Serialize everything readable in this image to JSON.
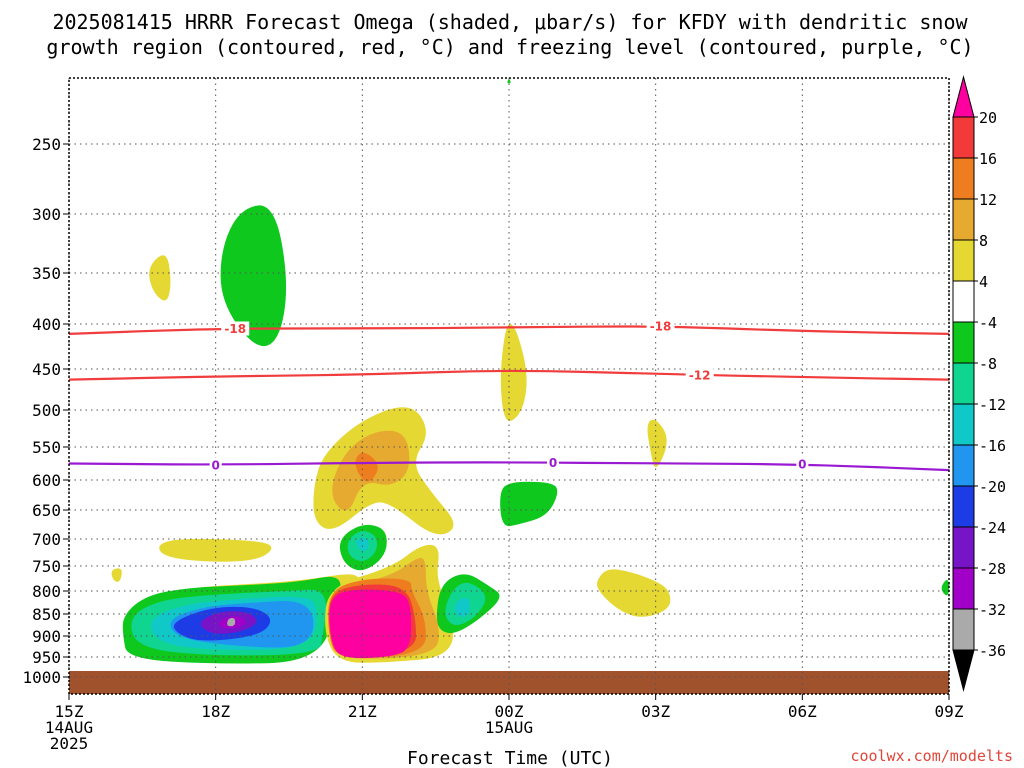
{
  "chart_data": {
    "type": "heatmap",
    "title_lines": [
      "2025081415 HRRR Forecast Omega (shaded, μbar/s) for KFDY with dendritic snow",
      "growth region (contoured, red, °C) and freezing level (contoured, purple, °C)"
    ],
    "xlabel": "Forecast Time (UTC)",
    "ylabel": "",
    "credit": "coolwx.com/modelts",
    "x_ticks": [
      {
        "hour": 0,
        "lines": [
          "15Z",
          "14AUG",
          "2025"
        ]
      },
      {
        "hour": 3,
        "lines": [
          "18Z"
        ]
      },
      {
        "hour": 6,
        "lines": [
          "21Z"
        ]
      },
      {
        "hour": 9,
        "lines": [
          "00Z",
          "15AUG"
        ]
      },
      {
        "hour": 12,
        "lines": [
          "03Z"
        ]
      },
      {
        "hour": 15,
        "lines": [
          "06Z"
        ]
      },
      {
        "hour": 18,
        "lines": [
          "09Z"
        ]
      }
    ],
    "x_range_hours": [
      0,
      18
    ],
    "y_axis": "pressure_mb",
    "y_range": [
      1050,
      200
    ],
    "y_ticks": [
      250,
      300,
      350,
      400,
      450,
      500,
      550,
      600,
      650,
      700,
      750,
      800,
      850,
      900,
      950,
      1000
    ],
    "surface_pressure": 985,
    "grid": true,
    "colorbar": {
      "levels": [
        20,
        16,
        12,
        8,
        4,
        -4,
        -8,
        -12,
        -16,
        -20,
        -24,
        -28,
        -32,
        -36
      ],
      "colors": [
        "#ff00a0",
        "#f23a3a",
        "#ee7d20",
        "#e6aa30",
        "#e6d832",
        "#ffffff",
        "#0fc81e",
        "#10d590",
        "#10c8c8",
        "#2096f0",
        "#1e3ce6",
        "#7814c8",
        "#a000c8",
        "#aaaaaa",
        "#000000"
      ],
      "shading_note_colors": {
        "ground": "#a0522d"
      }
    },
    "isotherms": [
      {
        "value": -18,
        "label": "-18",
        "color": "#f03c3c",
        "points": [
          [
            0,
            411
          ],
          [
            3,
            405
          ],
          [
            6,
            405
          ],
          [
            9,
            404
          ],
          [
            12,
            402
          ],
          [
            15,
            408
          ],
          [
            18,
            411
          ]
        ],
        "label_hours": [
          3.4,
          12.1
        ]
      },
      {
        "value": -12,
        "label": "-12",
        "color": "#f03c3c",
        "points": [
          [
            0,
            463
          ],
          [
            3,
            459
          ],
          [
            6,
            457
          ],
          [
            9,
            451
          ],
          [
            12,
            456
          ],
          [
            15,
            460
          ],
          [
            18,
            463
          ]
        ],
        "label_hours": [
          12.9
        ]
      },
      {
        "value": 0,
        "label": "0",
        "color": "#9a1ad2",
        "points": [
          [
            0,
            575
          ],
          [
            3,
            577
          ],
          [
            6,
            574
          ],
          [
            9,
            573
          ],
          [
            12,
            575
          ],
          [
            15,
            576
          ],
          [
            18,
            585
          ]
        ],
        "label_hours": [
          3.0,
          9.9,
          15.0
        ]
      }
    ],
    "omega_regions": [
      {
        "level": "-4",
        "color": "#0fc81e",
        "points": [
          [
            3.1,
            330
          ],
          [
            3.5,
            296
          ],
          [
            4.2,
            292
          ],
          [
            4.5,
            360
          ],
          [
            4.3,
            420
          ],
          [
            3.8,
            428
          ],
          [
            3.1,
            378
          ]
        ]
      },
      {
        "level": "4",
        "color": "#e6d832",
        "points": [
          [
            1.6,
            345
          ],
          [
            2.0,
            330
          ],
          [
            2.1,
            360
          ],
          [
            2.0,
            381
          ],
          [
            1.7,
            368
          ]
        ]
      },
      {
        "level": "4",
        "color": "#e6d832",
        "points": [
          [
            8.8,
            453
          ],
          [
            9.0,
            385
          ],
          [
            9.4,
            450
          ],
          [
            9.3,
            502
          ],
          [
            8.9,
            523
          ]
        ]
      },
      {
        "level": "4",
        "color": "#e6d832",
        "points": [
          [
            5.0,
            610
          ],
          [
            5.2,
            560
          ],
          [
            6.0,
            512
          ],
          [
            7.0,
            490
          ],
          [
            7.4,
            530
          ],
          [
            7.0,
            574
          ],
          [
            7.4,
            620
          ],
          [
            8.0,
            678
          ],
          [
            7.5,
            700
          ],
          [
            6.6,
            640
          ],
          [
            6.2,
            635
          ],
          [
            5.4,
            690
          ],
          [
            5.0,
            670
          ]
        ]
      },
      {
        "level": "8",
        "color": "#e6aa30",
        "points": [
          [
            5.3,
            625
          ],
          [
            5.6,
            560
          ],
          [
            6.2,
            528
          ],
          [
            6.9,
            528
          ],
          [
            7.0,
            585
          ],
          [
            6.6,
            612
          ],
          [
            6.0,
            600
          ],
          [
            5.7,
            663
          ]
        ]
      },
      {
        "level": "12",
        "color": "#ee7d20",
        "points": [
          [
            6.0,
            553
          ],
          [
            6.4,
            578
          ],
          [
            6.1,
            612
          ],
          [
            5.8,
            575
          ]
        ]
      },
      {
        "level": "4",
        "color": "#e6d832",
        "points": [
          [
            1.8,
            700
          ],
          [
            3.4,
            700
          ],
          [
            4.3,
            710
          ],
          [
            3.8,
            745
          ],
          [
            1.9,
            738
          ]
        ]
      },
      {
        "level": "4",
        "color": "#e6d832",
        "points": [
          [
            0.85,
            757
          ],
          [
            1.1,
            753
          ],
          [
            1.05,
            783
          ],
          [
            0.9,
            780
          ]
        ]
      },
      {
        "level": "4",
        "color": "#e6d832",
        "points": [
          [
            1.6,
            820
          ],
          [
            2.5,
            793
          ],
          [
            3.5,
            787
          ],
          [
            4.7,
            780
          ],
          [
            6.0,
            760
          ],
          [
            5.8,
            800
          ],
          [
            5.0,
            800
          ],
          [
            4.5,
            880
          ],
          [
            3.0,
            900
          ]
        ]
      },
      {
        "level": "-4",
        "color": "#0fc81e",
        "points": [
          [
            1.1,
            852
          ],
          [
            1.6,
            808
          ],
          [
            2.5,
            793
          ],
          [
            3.5,
            789
          ],
          [
            4.7,
            782
          ],
          [
            5.6,
            765
          ],
          [
            5.5,
            830
          ],
          [
            5.1,
            963
          ],
          [
            3.0,
            968
          ],
          [
            1.2,
            955
          ],
          [
            1.1,
            900
          ]
        ]
      },
      {
        "level": "-8",
        "color": "#10d590",
        "points": [
          [
            1.2,
            860
          ],
          [
            1.8,
            820
          ],
          [
            3.0,
            807
          ],
          [
            4.5,
            800
          ],
          [
            5.3,
            795
          ],
          [
            5.2,
            900
          ],
          [
            5.1,
            943
          ],
          [
            3.0,
            948
          ],
          [
            1.4,
            930
          ]
        ]
      },
      {
        "level": "-12",
        "color": "#10c8c8",
        "points": [
          [
            1.6,
            860
          ],
          [
            2.4,
            828
          ],
          [
            3.4,
            818
          ],
          [
            4.8,
            810
          ],
          [
            5.1,
            830
          ],
          [
            5.0,
            930
          ],
          [
            3.0,
            935
          ],
          [
            1.8,
            918
          ]
        ]
      },
      {
        "level": "-16",
        "color": "#2096f0",
        "points": [
          [
            2.0,
            863
          ],
          [
            2.7,
            835
          ],
          [
            3.6,
            826
          ],
          [
            5.0,
            818
          ],
          [
            5.0,
            930
          ],
          [
            3.4,
            925
          ],
          [
            2.2,
            905
          ]
        ]
      },
      {
        "level": "-20",
        "color": "#1e3ce6",
        "points": [
          [
            2.1,
            868
          ],
          [
            2.9,
            835
          ],
          [
            3.8,
            834
          ],
          [
            4.2,
            862
          ],
          [
            3.9,
            900
          ],
          [
            2.7,
            915
          ],
          [
            2.2,
            895
          ]
        ]
      },
      {
        "level": "-24",
        "color": "#7814c8",
        "points": [
          [
            2.6,
            869
          ],
          [
            3.1,
            843
          ],
          [
            3.7,
            845
          ],
          [
            3.9,
            870
          ],
          [
            3.5,
            892
          ],
          [
            2.9,
            897
          ]
        ]
      },
      {
        "level": "-28",
        "color": "#a000c8",
        "points": [
          [
            3.0,
            871
          ],
          [
            3.3,
            853
          ],
          [
            3.6,
            858
          ],
          [
            3.6,
            878
          ],
          [
            3.2,
            886
          ]
        ]
      },
      {
        "level": "-32",
        "color": "#aaaaaa",
        "points": [
          [
            3.25,
            860
          ],
          [
            3.4,
            858
          ],
          [
            3.4,
            878
          ],
          [
            3.22,
            878
          ]
        ]
      },
      {
        "level": "4",
        "color": "#e6d832",
        "points": [
          [
            5.3,
            790
          ],
          [
            6.6,
            753
          ],
          [
            7.2,
            710
          ],
          [
            7.6,
            712
          ],
          [
            7.5,
            780
          ],
          [
            7.9,
            862
          ],
          [
            7.8,
            950
          ],
          [
            6.5,
            964
          ],
          [
            5.5,
            965
          ],
          [
            5.2,
            890
          ]
        ]
      },
      {
        "level": "8",
        "color": "#e6aa30",
        "points": [
          [
            5.3,
            800
          ],
          [
            6.6,
            770
          ],
          [
            7.1,
            735
          ],
          [
            7.3,
            735
          ],
          [
            7.3,
            800
          ],
          [
            7.6,
            880
          ],
          [
            7.5,
            948
          ],
          [
            5.5,
            958
          ],
          [
            5.3,
            900
          ]
        ]
      },
      {
        "level": "12",
        "color": "#ee7d20",
        "points": [
          [
            5.3,
            800
          ],
          [
            6.0,
            775
          ],
          [
            7.0,
            775
          ],
          [
            7.0,
            800
          ],
          [
            7.3,
            860
          ],
          [
            7.3,
            945
          ],
          [
            5.5,
            955
          ],
          [
            5.3,
            900
          ]
        ]
      },
      {
        "level": "16",
        "color": "#f23a3a",
        "points": [
          [
            5.3,
            805
          ],
          [
            6.0,
            785
          ],
          [
            6.9,
            790
          ],
          [
            7.1,
            860
          ],
          [
            7.1,
            940
          ],
          [
            5.5,
            950
          ],
          [
            5.35,
            900
          ]
        ]
      },
      {
        "level": "20",
        "color": "#ff00a0",
        "points": [
          [
            5.3,
            815
          ],
          [
            5.8,
            795
          ],
          [
            6.8,
            800
          ],
          [
            7.0,
            830
          ],
          [
            7.0,
            930
          ],
          [
            6.6,
            950
          ],
          [
            5.6,
            955
          ],
          [
            5.35,
            920
          ]
        ]
      },
      {
        "level": "-4",
        "color": "#0fc81e",
        "points": [
          [
            5.5,
            700
          ],
          [
            6.0,
            672
          ],
          [
            6.5,
            682
          ],
          [
            6.5,
            730
          ],
          [
            6.0,
            765
          ],
          [
            5.6,
            745
          ]
        ]
      },
      {
        "level": "-8",
        "color": "#10d590",
        "points": [
          [
            5.7,
            700
          ],
          [
            6.0,
            683
          ],
          [
            6.3,
            695
          ],
          [
            6.3,
            725
          ],
          [
            6.0,
            745
          ],
          [
            5.7,
            730
          ]
        ]
      },
      {
        "level": "-12",
        "color": "#10c8c8",
        "points": [
          [
            5.85,
            705
          ],
          [
            6.0,
            695
          ],
          [
            6.15,
            705
          ],
          [
            6.1,
            722
          ],
          [
            5.95,
            722
          ]
        ]
      },
      {
        "level": "-4",
        "color": "#0fc81e",
        "points": [
          [
            7.5,
            860
          ],
          [
            7.6,
            785
          ],
          [
            8.1,
            760
          ],
          [
            8.6,
            790
          ],
          [
            8.9,
            812
          ],
          [
            8.4,
            862
          ],
          [
            7.9,
            896
          ],
          [
            7.6,
            890
          ]
        ]
      },
      {
        "level": "-8",
        "color": "#10d590",
        "points": [
          [
            7.7,
            830
          ],
          [
            7.9,
            790
          ],
          [
            8.2,
            780
          ],
          [
            8.6,
            812
          ],
          [
            8.3,
            860
          ],
          [
            7.9,
            880
          ],
          [
            7.7,
            860
          ]
        ]
      },
      {
        "level": "-12",
        "color": "#10c8c8",
        "points": [
          [
            7.85,
            838
          ],
          [
            8.0,
            815
          ],
          [
            8.2,
            815
          ],
          [
            8.2,
            850
          ],
          [
            8.0,
            860
          ]
        ]
      },
      {
        "level": "-4",
        "color": "#0fc81e",
        "points": [
          [
            8.8,
            620
          ],
          [
            9.0,
            603
          ],
          [
            9.8,
            603
          ],
          [
            10.05,
            615
          ],
          [
            9.8,
            660
          ],
          [
            9.2,
            675
          ],
          [
            8.85,
            680
          ]
        ]
      },
      {
        "level": "4",
        "color": "#e6d832",
        "points": [
          [
            10.8,
            777
          ],
          [
            11.0,
            755
          ],
          [
            11.4,
            759
          ],
          [
            12.0,
            779
          ],
          [
            12.3,
            800
          ],
          [
            12.3,
            840
          ],
          [
            11.7,
            862
          ],
          [
            11.2,
            840
          ],
          [
            10.8,
            797
          ]
        ]
      },
      {
        "level": "4",
        "color": "#e6d832",
        "points": [
          [
            11.8,
            518
          ],
          [
            12.0,
            510
          ],
          [
            12.3,
            540
          ],
          [
            12.0,
            590
          ],
          [
            11.9,
            560
          ]
        ]
      },
      {
        "level": "-4",
        "color": "#0fc81e",
        "points": [
          [
            9.0,
            200
          ],
          [
            9.05,
            204
          ],
          [
            8.95,
            204
          ]
        ]
      },
      {
        "level": "-4",
        "color": "#0fc81e",
        "points": [
          [
            18.0,
            770
          ],
          [
            17.8,
            795
          ],
          [
            18.0,
            817
          ]
        ]
      }
    ]
  }
}
